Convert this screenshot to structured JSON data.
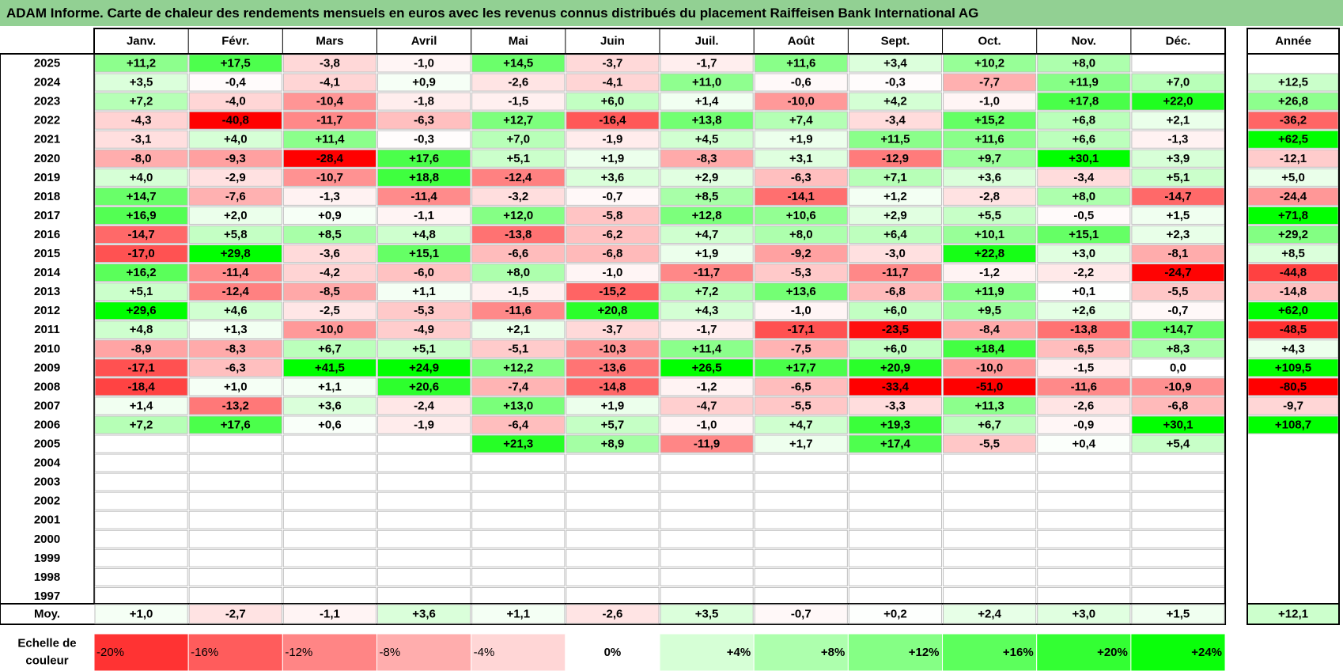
{
  "title": "ADAM Informe. Carte de chaleur des rendements mensuels en euros avec les revenus connus distribués du placement Raiffeisen Bank International AG",
  "chart_data": {
    "type": "heatmap",
    "columns": [
      "Janv.",
      "Févr.",
      "Mars",
      "Avril",
      "Mai",
      "Juin",
      "Juil.",
      "Août",
      "Sept.",
      "Oct.",
      "Nov.",
      "Déc."
    ],
    "year_header": "Année",
    "rows": [
      {
        "label": "2025",
        "values": [
          11.2,
          17.5,
          -3.8,
          -1.0,
          14.5,
          -3.7,
          -1.7,
          11.6,
          3.4,
          10.2,
          8.0,
          null
        ],
        "year": null
      },
      {
        "label": "2024",
        "values": [
          3.5,
          -0.4,
          -4.1,
          0.9,
          -2.6,
          -4.1,
          11.0,
          -0.6,
          -0.3,
          -7.7,
          11.9,
          7.0
        ],
        "year": 12.5
      },
      {
        "label": "2023",
        "values": [
          7.2,
          -4.0,
          -10.4,
          -1.8,
          -1.5,
          6.0,
          1.4,
          -10.0,
          4.2,
          -1.0,
          17.8,
          22.0
        ],
        "year": 26.8
      },
      {
        "label": "2022",
        "values": [
          -4.3,
          -40.8,
          -11.7,
          -6.3,
          12.7,
          -16.4,
          13.8,
          7.4,
          -3.4,
          15.2,
          6.8,
          2.1
        ],
        "year": -36.2
      },
      {
        "label": "2021",
        "values": [
          -3.1,
          4.0,
          11.4,
          -0.3,
          7.0,
          -1.9,
          4.5,
          1.9,
          11.5,
          11.6,
          6.6,
          -1.3
        ],
        "year": 62.5
      },
      {
        "label": "2020",
        "values": [
          -8.0,
          -9.3,
          -28.4,
          17.6,
          5.1,
          1.9,
          -8.3,
          3.1,
          -12.9,
          9.7,
          30.1,
          3.9
        ],
        "year": -12.1
      },
      {
        "label": "2019",
        "values": [
          4.0,
          -2.9,
          -10.7,
          18.8,
          -12.4,
          3.6,
          2.9,
          -6.3,
          7.1,
          3.6,
          -3.4,
          5.1
        ],
        "year": 5.0
      },
      {
        "label": "2018",
        "values": [
          14.7,
          -7.6,
          -1.3,
          -11.4,
          -3.2,
          -0.7,
          8.5,
          -14.1,
          1.2,
          -2.8,
          8.0,
          -14.7
        ],
        "year": -24.4
      },
      {
        "label": "2017",
        "values": [
          16.9,
          2.0,
          0.9,
          -1.1,
          12.0,
          -5.8,
          12.8,
          10.6,
          2.9,
          5.5,
          -0.5,
          1.5
        ],
        "year": 71.8
      },
      {
        "label": "2016",
        "values": [
          -14.7,
          5.8,
          8.5,
          4.8,
          -13.8,
          -6.2,
          4.7,
          8.0,
          6.4,
          10.1,
          15.1,
          2.3
        ],
        "year": 29.2
      },
      {
        "label": "2015",
        "values": [
          -17.0,
          29.8,
          -3.6,
          15.1,
          -6.6,
          -6.8,
          1.9,
          -9.2,
          -3.0,
          22.8,
          3.0,
          -8.1
        ],
        "year": 8.5
      },
      {
        "label": "2014",
        "values": [
          16.2,
          -11.4,
          -4.2,
          -6.0,
          8.0,
          -1.0,
          -11.7,
          -5.3,
          -11.7,
          -1.2,
          -2.2,
          -24.7
        ],
        "year": -44.8
      },
      {
        "label": "2013",
        "values": [
          5.1,
          -12.4,
          -8.5,
          1.1,
          -1.5,
          -15.2,
          7.2,
          13.6,
          -6.8,
          11.9,
          0.1,
          -5.5
        ],
        "year": -14.8
      },
      {
        "label": "2012",
        "values": [
          29.6,
          4.6,
          -2.5,
          -5.3,
          -11.6,
          20.8,
          4.3,
          -1.0,
          6.0,
          9.5,
          2.6,
          -0.7
        ],
        "year": 62.0
      },
      {
        "label": "2011",
        "values": [
          4.8,
          1.3,
          -10.0,
          -4.9,
          2.1,
          -3.7,
          -1.7,
          -17.1,
          -23.5,
          -8.4,
          -13.8,
          14.7
        ],
        "year": -48.5
      },
      {
        "label": "2010",
        "values": [
          -8.9,
          -8.3,
          6.7,
          5.1,
          -5.1,
          -10.3,
          11.4,
          -7.5,
          6.0,
          18.4,
          -6.5,
          8.3
        ],
        "year": 4.3
      },
      {
        "label": "2009",
        "values": [
          -17.1,
          -6.3,
          41.5,
          24.9,
          12.2,
          -13.6,
          26.5,
          17.7,
          20.9,
          -10.0,
          -1.5,
          0.0
        ],
        "year": 109.5
      },
      {
        "label": "2008",
        "values": [
          -18.4,
          1.0,
          1.1,
          20.6,
          -7.4,
          -14.8,
          -1.2,
          -6.5,
          -33.4,
          -51.0,
          -11.6,
          -10.9
        ],
        "year": -80.5
      },
      {
        "label": "2007",
        "values": [
          1.4,
          -13.2,
          3.6,
          -2.4,
          13.0,
          1.9,
          -4.7,
          -5.5,
          -3.3,
          11.3,
          -2.6,
          -6.8
        ],
        "year": -9.7
      },
      {
        "label": "2006",
        "values": [
          7.2,
          17.6,
          0.6,
          -1.9,
          -6.4,
          5.7,
          -1.0,
          4.7,
          19.3,
          6.7,
          -0.9,
          30.1
        ],
        "year": 108.7
      },
      {
        "label": "2005",
        "values": [
          null,
          null,
          null,
          null,
          21.3,
          8.9,
          -11.9,
          1.7,
          17.4,
          -5.5,
          0.4,
          5.4
        ],
        "year": null
      },
      {
        "label": "2004",
        "values": [
          null,
          null,
          null,
          null,
          null,
          null,
          null,
          null,
          null,
          null,
          null,
          null
        ],
        "year": null
      },
      {
        "label": "2003",
        "values": [
          null,
          null,
          null,
          null,
          null,
          null,
          null,
          null,
          null,
          null,
          null,
          null
        ],
        "year": null
      },
      {
        "label": "2002",
        "values": [
          null,
          null,
          null,
          null,
          null,
          null,
          null,
          null,
          null,
          null,
          null,
          null
        ],
        "year": null
      },
      {
        "label": "2001",
        "values": [
          null,
          null,
          null,
          null,
          null,
          null,
          null,
          null,
          null,
          null,
          null,
          null
        ],
        "year": null
      },
      {
        "label": "2000",
        "values": [
          null,
          null,
          null,
          null,
          null,
          null,
          null,
          null,
          null,
          null,
          null,
          null
        ],
        "year": null
      },
      {
        "label": "1999",
        "values": [
          null,
          null,
          null,
          null,
          null,
          null,
          null,
          null,
          null,
          null,
          null,
          null
        ],
        "year": null
      },
      {
        "label": "1998",
        "values": [
          null,
          null,
          null,
          null,
          null,
          null,
          null,
          null,
          null,
          null,
          null,
          null
        ],
        "year": null
      },
      {
        "label": "1997",
        "values": [
          null,
          null,
          null,
          null,
          null,
          null,
          null,
          null,
          null,
          null,
          null,
          null
        ],
        "year": null
      }
    ],
    "average": {
      "label": "Moy.",
      "values": [
        1.0,
        -2.7,
        -1.1,
        3.6,
        1.1,
        -2.6,
        3.5,
        -0.7,
        0.2,
        2.4,
        3.0,
        1.5
      ],
      "year": 12.1
    },
    "scale": {
      "label_line1": "Echelle de",
      "label_line2": "couleur",
      "stops": [
        -20,
        -16,
        -12,
        -8,
        -4,
        0,
        4,
        8,
        12,
        16,
        20,
        24
      ],
      "stop_labels": [
        "-20%",
        "-16%",
        "-12%",
        "-8%",
        "-4%",
        "0%",
        "+4%",
        "+8%",
        "+12%",
        "+16%",
        "+20%",
        "+24%"
      ]
    },
    "colors": {
      "negative": "#ff0000",
      "zero": "#ffffff",
      "positive": "#00ff00",
      "title_bg": "#92d093"
    }
  }
}
